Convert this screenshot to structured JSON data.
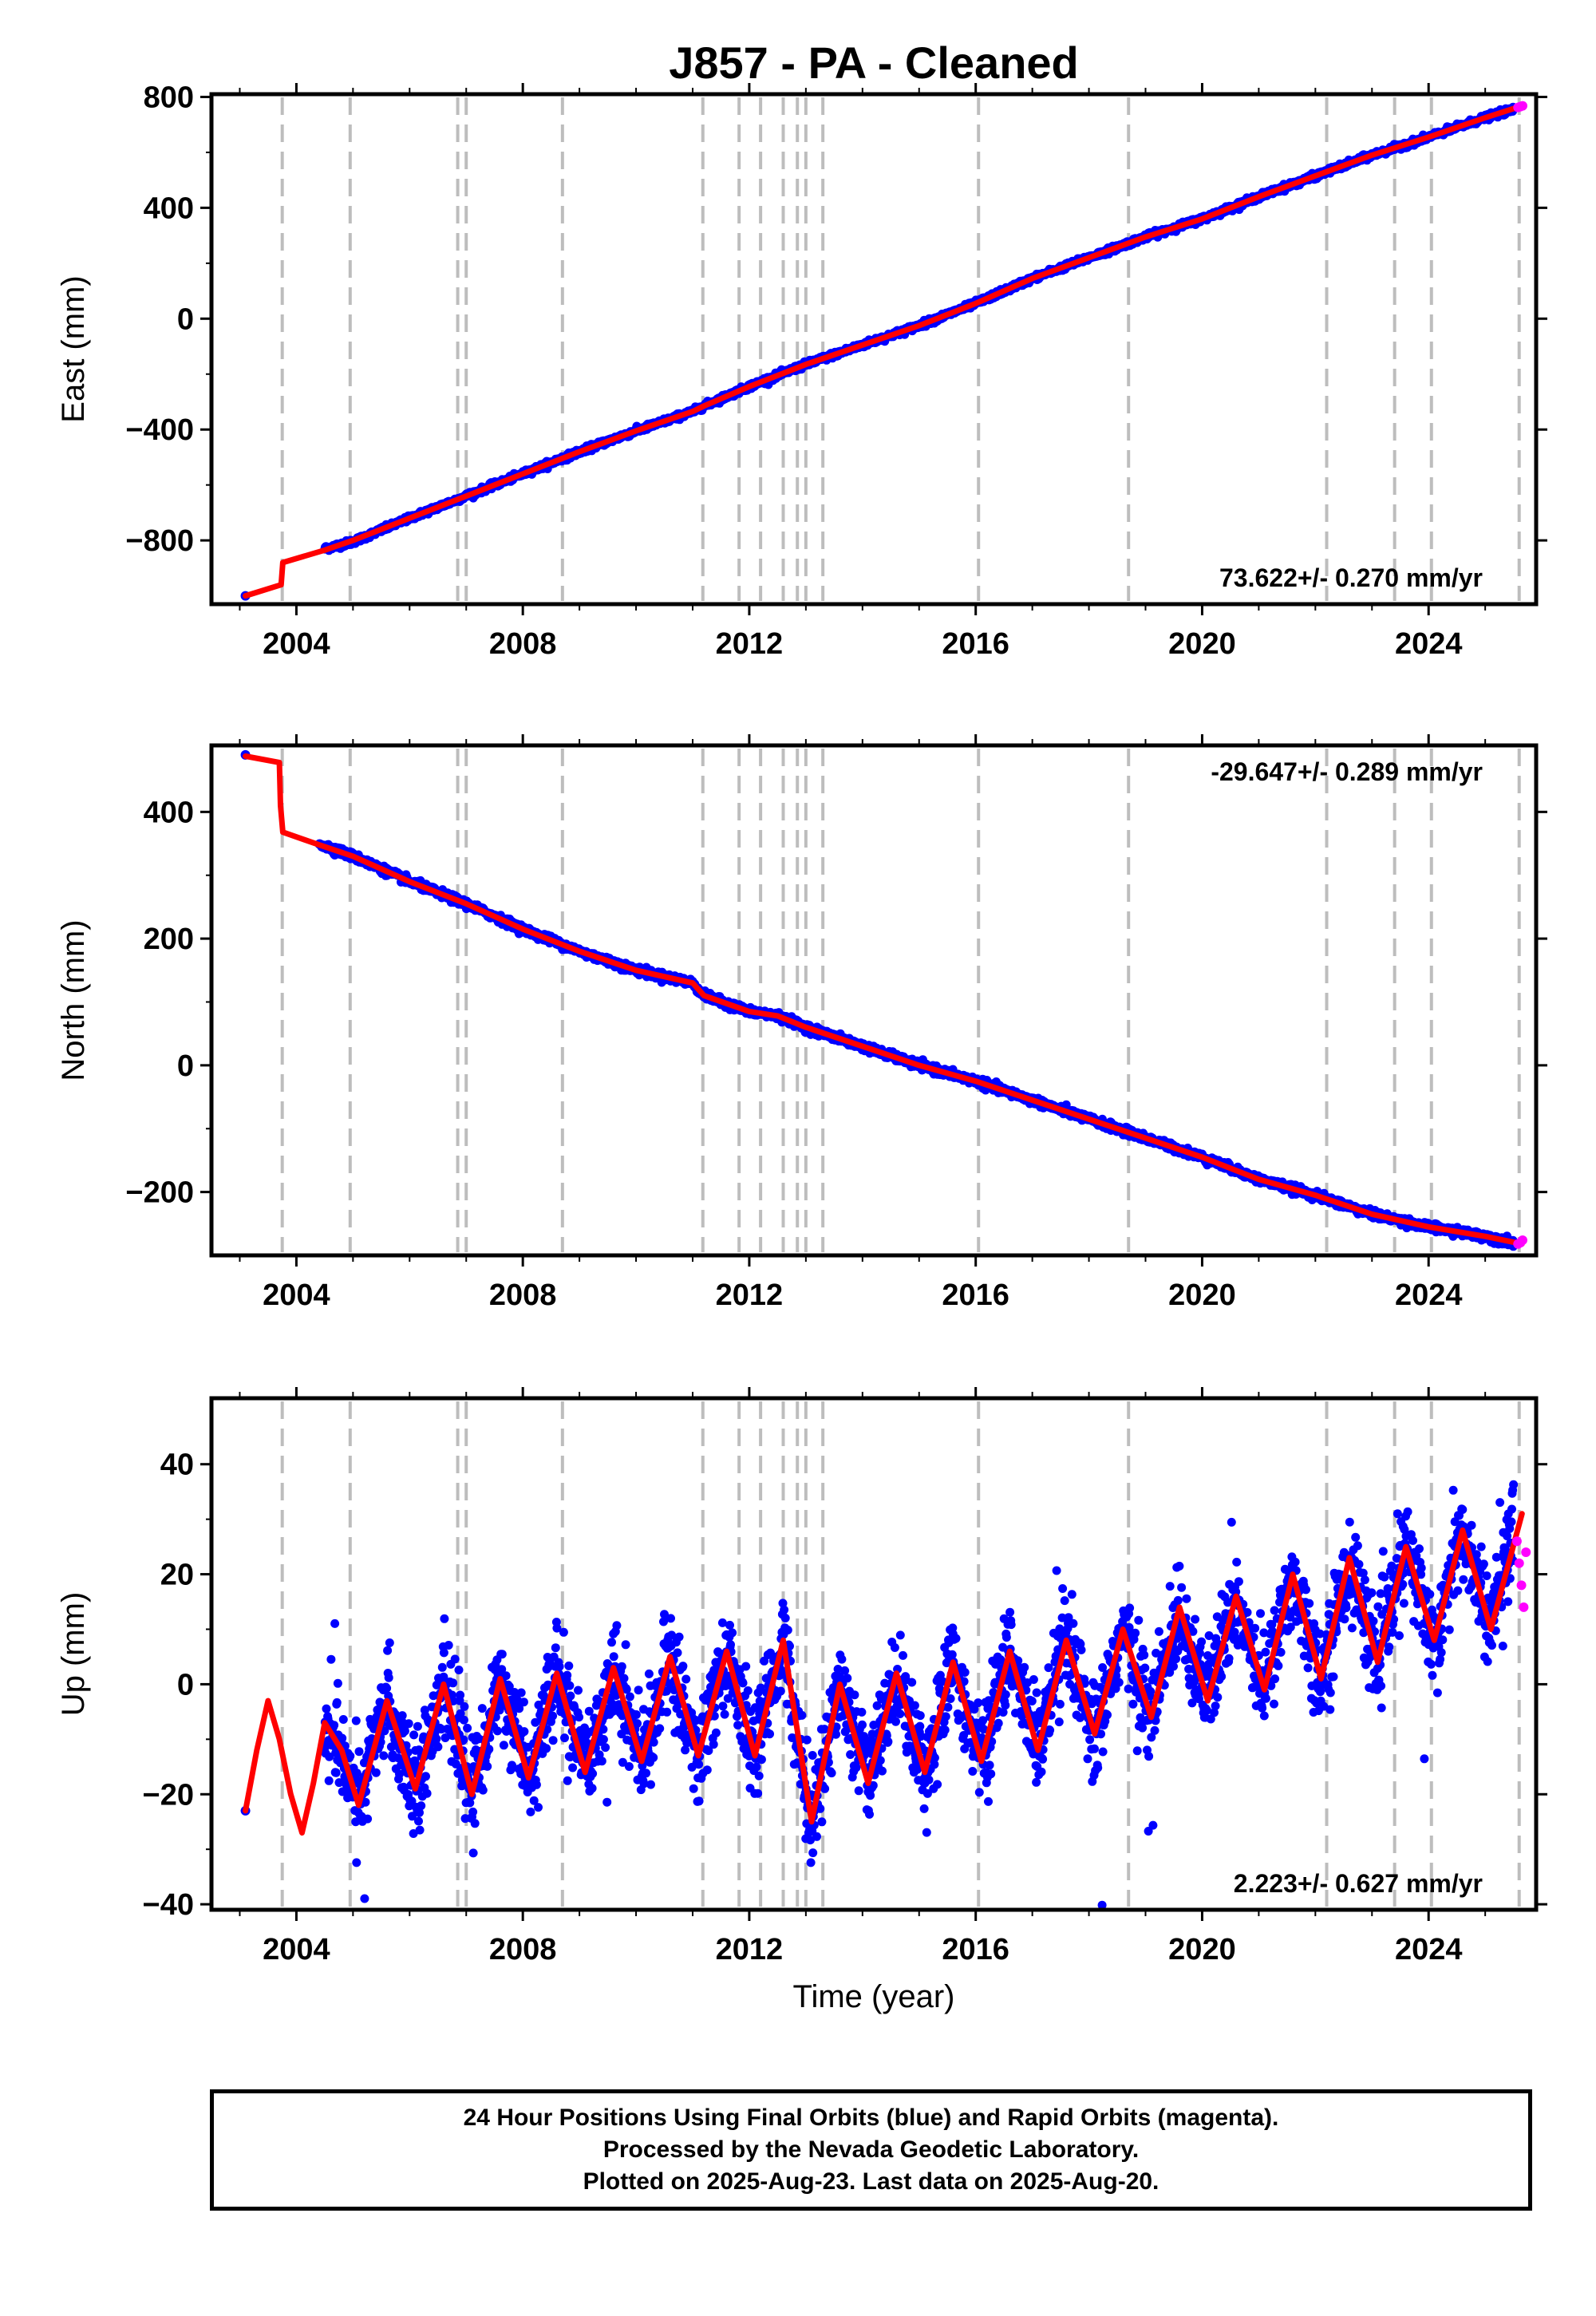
{
  "chart_data": [
    {
      "type": "scatter",
      "panel": "east",
      "title": "J857  - PA - Cleaned",
      "xlabel": "",
      "ylabel": "East (mm)",
      "xlim": [
        2002.5,
        2025.9
      ],
      "ylim": [
        -1030,
        810
      ],
      "xticks": [
        2004,
        2008,
        2012,
        2016,
        2020,
        2024
      ],
      "yticks": [
        -800,
        -400,
        0,
        400,
        800
      ],
      "grid": false,
      "rate_text": "73.622+/- 0.270 mm/yr",
      "rate_placement": "bottom-right",
      "offset_epochs": [
        2003.75,
        2004.95,
        2006.85,
        2007.0,
        2008.7,
        2011.18,
        2011.82,
        2012.2,
        2012.6,
        2012.85,
        2013.0,
        2013.3,
        2016.05,
        2018.7,
        2022.2,
        2023.4,
        2024.05,
        2025.6
      ],
      "series": [
        {
          "name": "Final Orbits",
          "color": "#0000ff",
          "x": [
            2003.1,
            2004.5,
            2005.0,
            2006.0,
            2007.0,
            2008.0,
            2009.0,
            2010.0,
            2011.0,
            2011.2,
            2012.0,
            2013.0,
            2014.0,
            2015.0,
            2016.0,
            2017.0,
            2018.0,
            2019.0,
            2020.0,
            2021.0,
            2022.0,
            2023.0,
            2024.0,
            2025.0,
            2025.5
          ],
          "y": [
            -1000,
            -830,
            -805,
            -720,
            -640,
            -560,
            -480,
            -405,
            -335,
            -315,
            -245,
            -165,
            -95,
            -25,
            55,
            145,
            220,
            295,
            360,
            440,
            515,
            590,
            655,
            725,
            755
          ]
        },
        {
          "name": "Rapid Orbits",
          "color": "#ff00ff",
          "x": [
            2025.58,
            2025.62,
            2025.66
          ],
          "y": [
            762,
            765,
            768
          ]
        },
        {
          "name": "Model",
          "color": "#ff0000",
          "x": [
            2003.1,
            2003.73,
            2003.76,
            2004.5,
            2005.0,
            2006.0,
            2007.0,
            2008.0,
            2009.0,
            2010.0,
            2011.0,
            2011.2,
            2012.0,
            2013.0,
            2014.0,
            2015.0,
            2016.0,
            2017.0,
            2018.0,
            2019.0,
            2020.0,
            2021.0,
            2022.0,
            2023.0,
            2024.0,
            2025.0,
            2025.65
          ],
          "y": [
            -1000,
            -960,
            -880,
            -835,
            -800,
            -720,
            -640,
            -560,
            -480,
            -405,
            -335,
            -315,
            -245,
            -165,
            -95,
            -25,
            55,
            145,
            220,
            295,
            360,
            440,
            515,
            590,
            655,
            725,
            768
          ]
        }
      ]
    },
    {
      "type": "scatter",
      "panel": "north",
      "xlabel": "",
      "ylabel": "North (mm)",
      "xlim": [
        2002.5,
        2025.9
      ],
      "ylim": [
        -300,
        505
      ],
      "xticks": [
        2004,
        2008,
        2012,
        2016,
        2020,
        2024
      ],
      "yticks": [
        -200,
        0,
        200,
        400
      ],
      "grid": false,
      "rate_text": "-29.647+/- 0.289 mm/yr",
      "rate_placement": "top-right",
      "offset_epochs": [
        2003.75,
        2004.95,
        2006.85,
        2007.0,
        2008.7,
        2011.18,
        2011.82,
        2012.2,
        2012.6,
        2012.85,
        2013.0,
        2013.3,
        2016.05,
        2018.7,
        2022.2,
        2023.4,
        2024.05,
        2025.6
      ],
      "series": [
        {
          "name": "Final Orbits",
          "color": "#0000ff",
          "x": [
            2003.1,
            2004.4,
            2005.0,
            2006.0,
            2007.0,
            2008.0,
            2009.0,
            2010.0,
            2011.0,
            2011.2,
            2012.0,
            2012.5,
            2013.0,
            2014.0,
            2015.0,
            2016.0,
            2017.0,
            2018.0,
            2019.0,
            2020.0,
            2021.0,
            2022.0,
            2023.0,
            2024.0,
            2025.0,
            2025.5
          ],
          "y": [
            490,
            350,
            330,
            290,
            255,
            215,
            180,
            150,
            130,
            110,
            85,
            78,
            60,
            30,
            0,
            -25,
            -55,
            -85,
            -115,
            -145,
            -180,
            -205,
            -235,
            -255,
            -270,
            -280
          ]
        },
        {
          "name": "Rapid Orbits",
          "color": "#ff00ff",
          "x": [
            2025.58,
            2025.62,
            2025.66
          ],
          "y": [
            -282,
            -280,
            -276
          ]
        },
        {
          "name": "Model",
          "color": "#ff0000",
          "x": [
            2003.1,
            2003.7,
            2003.72,
            2003.76,
            2004.4,
            2005.0,
            2006.0,
            2007.0,
            2008.0,
            2009.0,
            2010.0,
            2011.0,
            2011.2,
            2012.0,
            2012.5,
            2013.0,
            2014.0,
            2015.0,
            2016.0,
            2017.0,
            2018.0,
            2019.0,
            2020.0,
            2021.0,
            2022.0,
            2023.0,
            2024.0,
            2025.0,
            2025.65
          ],
          "y": [
            488,
            478,
            410,
            368,
            348,
            330,
            290,
            255,
            215,
            180,
            150,
            130,
            110,
            85,
            78,
            60,
            30,
            0,
            -25,
            -55,
            -85,
            -115,
            -145,
            -180,
            -205,
            -235,
            -255,
            -270,
            -282
          ]
        }
      ]
    },
    {
      "type": "scatter",
      "panel": "up",
      "xlabel": "Time (year)",
      "ylabel": "Up (mm)",
      "xlim": [
        2002.5,
        2025.9
      ],
      "ylim": [
        -41,
        52
      ],
      "xticks": [
        2004,
        2008,
        2012,
        2016,
        2020,
        2024
      ],
      "yticks": [
        -40,
        -20,
        0,
        20,
        40
      ],
      "grid": false,
      "rate_text": "2.223+/- 0.627 mm/yr",
      "rate_placement": "bottom-right",
      "offset_epochs": [
        2003.75,
        2004.95,
        2006.85,
        2007.0,
        2008.7,
        2011.18,
        2011.82,
        2012.2,
        2012.6,
        2012.85,
        2013.0,
        2013.3,
        2016.05,
        2018.7,
        2022.2,
        2023.4,
        2024.05,
        2025.6
      ],
      "series": [
        {
          "name": "Final Orbits",
          "color": "#0000ff",
          "x": [
            2003.1,
            2004.5,
            2004.8,
            2005.1,
            2005.6,
            2006.1,
            2006.6,
            2007.1,
            2007.6,
            2008.1,
            2008.6,
            2009.1,
            2009.6,
            2010.1,
            2010.6,
            2011.1,
            2011.6,
            2012.1,
            2012.6,
            2013.1,
            2013.6,
            2014.1,
            2014.6,
            2015.1,
            2015.6,
            2016.1,
            2016.6,
            2017.1,
            2017.6,
            2018.1,
            2018.6,
            2019.1,
            2019.6,
            2020.1,
            2020.6,
            2021.1,
            2021.6,
            2022.1,
            2022.6,
            2023.1,
            2023.6,
            2024.1,
            2024.6,
            2025.1,
            2025.5
          ],
          "y": [
            -23,
            -8,
            -12,
            -22,
            -3,
            -19,
            0,
            -20,
            1,
            -17,
            2,
            -16,
            3,
            -14,
            5,
            -13,
            6,
            -13,
            8,
            -25,
            0,
            -18,
            2,
            -16,
            4,
            -14,
            6,
            -12,
            8,
            -9,
            10,
            -6,
            14,
            -3,
            16,
            -1,
            20,
            1,
            23,
            4,
            25,
            8,
            28,
            10,
            30
          ]
        },
        {
          "name": "Rapid Orbits",
          "color": "#ff00ff",
          "x": [
            2025.56,
            2025.6,
            2025.64,
            2025.68,
            2025.72
          ],
          "y": [
            26,
            22,
            18,
            14,
            24
          ]
        },
        {
          "name": "Model",
          "color": "#ff0000",
          "x": [
            2003.1,
            2003.3,
            2003.5,
            2003.7,
            2003.9,
            2004.1,
            2004.3,
            2004.5,
            2004.8,
            2005.1,
            2005.6,
            2006.1,
            2006.6,
            2007.1,
            2007.6,
            2008.1,
            2008.6,
            2009.1,
            2009.6,
            2010.1,
            2010.6,
            2011.1,
            2011.6,
            2012.1,
            2012.6,
            2013.1,
            2013.6,
            2014.1,
            2014.6,
            2015.1,
            2015.6,
            2016.1,
            2016.6,
            2017.1,
            2017.6,
            2018.1,
            2018.6,
            2019.1,
            2019.6,
            2020.1,
            2020.6,
            2021.1,
            2021.6,
            2022.1,
            2022.6,
            2023.1,
            2023.6,
            2024.1,
            2024.6,
            2025.1,
            2025.65
          ],
          "y": [
            -23,
            -12,
            -3,
            -10,
            -20,
            -27,
            -18,
            -7,
            -12,
            -22,
            -3,
            -19,
            0,
            -20,
            1,
            -17,
            2,
            -16,
            3,
            -14,
            5,
            -13,
            6,
            -13,
            8,
            -25,
            0,
            -18,
            2,
            -16,
            4,
            -14,
            6,
            -12,
            8,
            -9,
            10,
            -6,
            14,
            -3,
            16,
            -1,
            20,
            1,
            23,
            4,
            25,
            8,
            28,
            10,
            31
          ]
        }
      ]
    }
  ],
  "footer": {
    "line1": "24 Hour Positions Using Final Orbits (blue) and Rapid Orbits (magenta).",
    "line2": "Processed by the Nevada Geodetic Laboratory.",
    "line3": "Plotted on 2025-Aug-23. Last data on 2025-Aug-20."
  }
}
